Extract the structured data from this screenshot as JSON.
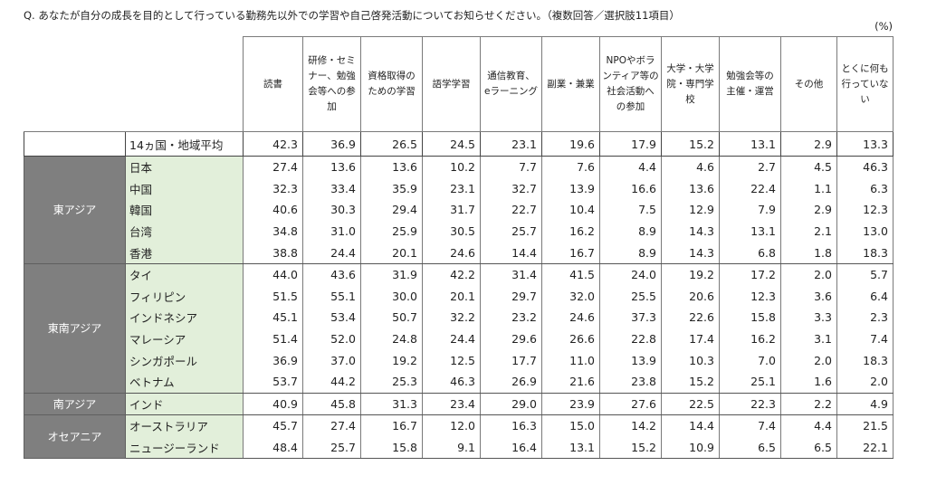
{
  "question": "Q. あなたが自分の成長を目的として行っている勤務先以外での学習や自己啓発活動についてお知らせください。（複数回答／選択肢11項目）",
  "unit": "(%)",
  "chart_data": {
    "type": "table",
    "columns": [
      "読書",
      "研修・セミナー、勉強会等への参加",
      "資格取得のための学習",
      "語学学習",
      "通信教育、eラーニング",
      "副業・兼業",
      "NPOやボランティア等の社会活動への参加",
      "大学・大学院・専門学校",
      "勉強会等の主催・運営",
      "その他",
      "とくに何も行っていない"
    ],
    "column_lines": [
      [
        "読書"
      ],
      [
        "研修・セミ",
        "ナー、勉強",
        "会等への参",
        "加"
      ],
      [
        "資格取得の",
        "ための学習"
      ],
      [
        "語学学習"
      ],
      [
        "通信教育、",
        "eラーニング"
      ],
      [
        "副業・兼業"
      ],
      [
        "NPOやボラ",
        "ンティア等の",
        "社会活動へ",
        "の参加"
      ],
      [
        "大学・大学",
        "院・専門学",
        "校"
      ],
      [
        "勉強会等の",
        "主催・運営"
      ],
      [
        "その他"
      ],
      [
        "とくに何も",
        "行っていな",
        "い"
      ]
    ],
    "average": {
      "label": "14ヵ国・地域平均",
      "values": [
        42.3,
        36.9,
        26.5,
        24.5,
        23.1,
        19.6,
        17.9,
        15.2,
        13.1,
        2.9,
        13.3
      ]
    },
    "groups": [
      {
        "region": "東アジア",
        "rows": [
          {
            "country": "日本",
            "values": [
              27.4,
              13.6,
              13.6,
              10.2,
              7.7,
              7.6,
              4.4,
              4.6,
              2.7,
              4.5,
              46.3
            ]
          },
          {
            "country": "中国",
            "values": [
              32.3,
              33.4,
              35.9,
              23.1,
              32.7,
              13.9,
              16.6,
              13.6,
              22.4,
              1.1,
              6.3
            ]
          },
          {
            "country": "韓国",
            "values": [
              40.6,
              30.3,
              29.4,
              31.7,
              22.7,
              10.4,
              7.5,
              12.9,
              7.9,
              2.9,
              12.3
            ]
          },
          {
            "country": "台湾",
            "values": [
              34.8,
              31.0,
              25.9,
              30.5,
              25.7,
              16.2,
              8.9,
              14.3,
              13.1,
              2.1,
              13.0
            ]
          },
          {
            "country": "香港",
            "values": [
              38.8,
              24.4,
              20.1,
              24.6,
              14.4,
              16.7,
              8.9,
              14.3,
              6.8,
              1.8,
              18.3
            ]
          }
        ]
      },
      {
        "region": "東南アジア",
        "rows": [
          {
            "country": "タイ",
            "values": [
              44.0,
              43.6,
              31.9,
              42.2,
              31.4,
              41.5,
              24.0,
              19.2,
              17.2,
              2.0,
              5.7
            ]
          },
          {
            "country": "フィリピン",
            "values": [
              51.5,
              55.1,
              30.0,
              20.1,
              29.7,
              32.0,
              25.5,
              20.6,
              12.3,
              3.6,
              6.4
            ]
          },
          {
            "country": "インドネシア",
            "values": [
              45.1,
              53.4,
              50.7,
              32.2,
              23.2,
              24.6,
              37.3,
              22.6,
              15.8,
              3.3,
              2.3
            ]
          },
          {
            "country": "マレーシア",
            "values": [
              51.4,
              52.0,
              24.8,
              24.4,
              29.6,
              26.6,
              22.8,
              17.4,
              16.2,
              3.1,
              7.4
            ]
          },
          {
            "country": "シンガポール",
            "values": [
              36.9,
              37.0,
              19.2,
              12.5,
              17.7,
              11.0,
              13.9,
              10.3,
              7.0,
              2.0,
              18.3
            ]
          },
          {
            "country": "ベトナム",
            "values": [
              53.7,
              44.2,
              25.3,
              46.3,
              26.9,
              21.6,
              23.8,
              15.2,
              25.1,
              1.6,
              2.0
            ]
          }
        ]
      },
      {
        "region": "南アジア",
        "rows": [
          {
            "country": "インド",
            "values": [
              40.9,
              45.8,
              31.3,
              23.4,
              29.0,
              23.9,
              27.6,
              22.5,
              22.3,
              2.2,
              4.9
            ]
          }
        ]
      },
      {
        "region": "オセアニア",
        "rows": [
          {
            "country": "オーストラリア",
            "values": [
              45.7,
              27.4,
              16.7,
              12.0,
              16.3,
              15.0,
              14.2,
              14.4,
              7.4,
              4.4,
              21.5
            ]
          },
          {
            "country": "ニュージーランド",
            "values": [
              48.4,
              25.7,
              15.8,
              9.1,
              16.4,
              13.1,
              15.2,
              10.9,
              6.5,
              6.5,
              22.1
            ]
          }
        ]
      }
    ]
  }
}
